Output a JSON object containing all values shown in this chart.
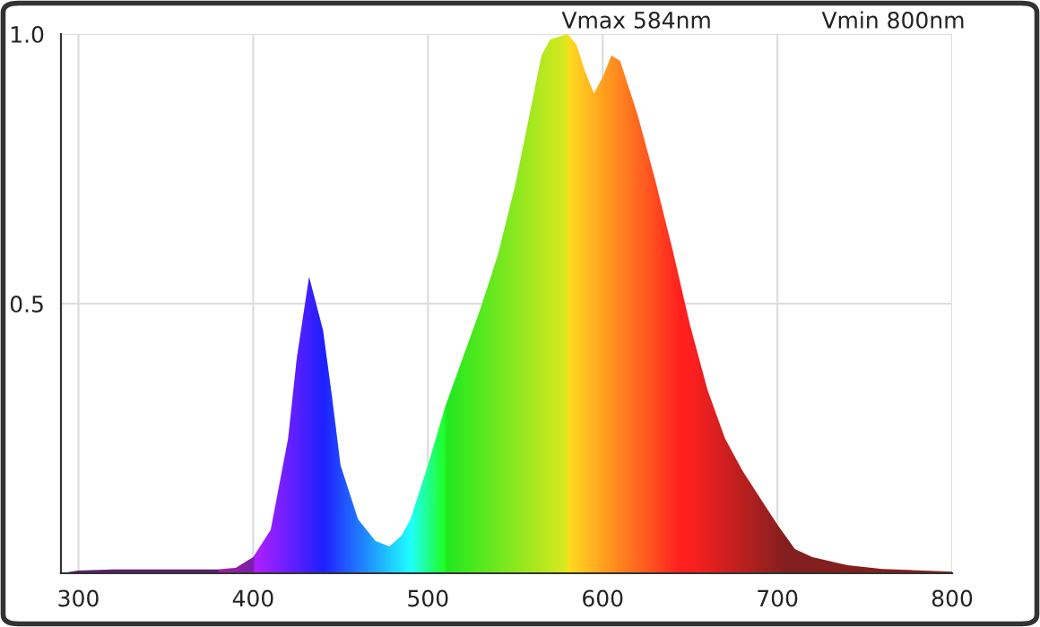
{
  "chart_data": {
    "type": "area",
    "x": [
      290,
      300,
      320,
      380,
      390,
      400,
      410,
      420,
      425,
      432,
      440,
      445,
      450,
      460,
      470,
      478,
      485,
      490,
      500,
      510,
      520,
      530,
      540,
      550,
      560,
      565,
      570,
      580,
      585,
      590,
      595,
      600,
      605,
      610,
      620,
      630,
      640,
      650,
      660,
      670,
      680,
      690,
      700,
      710,
      720,
      740,
      760,
      800
    ],
    "series": [
      {
        "values": [
          0,
          0.005,
          0.007,
          0.007,
          0.01,
          0.03,
          0.08,
          0.25,
          0.4,
          0.55,
          0.45,
          0.33,
          0.2,
          0.1,
          0.06,
          0.05,
          0.07,
          0.1,
          0.2,
          0.31,
          0.4,
          0.49,
          0.59,
          0.72,
          0.88,
          0.96,
          0.99,
          1.0,
          0.98,
          0.93,
          0.89,
          0.92,
          0.96,
          0.95,
          0.85,
          0.73,
          0.6,
          0.46,
          0.34,
          0.25,
          0.19,
          0.14,
          0.09,
          0.045,
          0.03,
          0.015,
          0.008,
          0.003
        ]
      }
    ],
    "xlim": [
      290,
      800
    ],
    "ylim": [
      0,
      1
    ],
    "xticks": [
      300,
      400,
      500,
      600,
      700,
      800
    ],
    "yticks": [
      {
        "value": 0.5,
        "label": "0.5"
      },
      {
        "value": 1.0,
        "label": "1.0"
      }
    ],
    "grid": true,
    "annotations": [
      "Vmax 584nm",
      "Vmin 800nm"
    ]
  }
}
